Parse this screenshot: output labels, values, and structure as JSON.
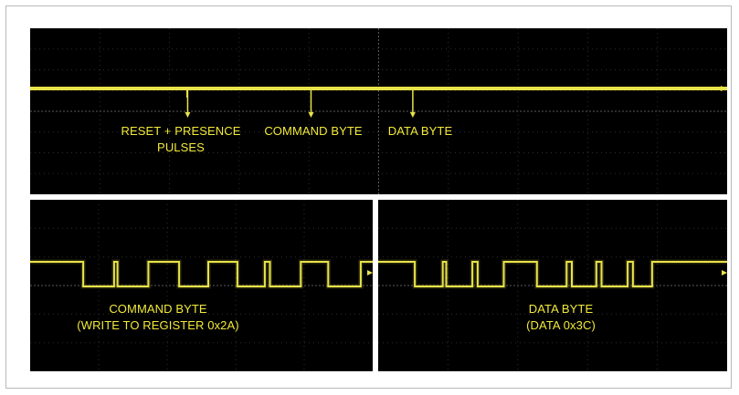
{
  "chart_data": [
    {
      "type": "line",
      "panel": "overview",
      "trace_color": "#e8e34a",
      "annotations": [
        {
          "id": "reset",
          "lines": [
            "RESET + PRESENCE",
            "PULSES"
          ],
          "marker_x": 0.226
        },
        {
          "id": "command",
          "lines": [
            "COMMAND BYTE"
          ],
          "marker_x": 0.403
        },
        {
          "id": "data",
          "lines": [
            "DATA BYTE"
          ],
          "marker_x": 0.549
        }
      ]
    },
    {
      "type": "line",
      "panel": "command-byte-zoom",
      "trace_color": "#e8e34a",
      "signal": [
        [
          0.0,
          1
        ],
        [
          0.155,
          1
        ],
        [
          0.155,
          0
        ],
        [
          0.245,
          0
        ],
        [
          0.245,
          1
        ],
        [
          0.255,
          1
        ],
        [
          0.255,
          0
        ],
        [
          0.345,
          0
        ],
        [
          0.345,
          1
        ],
        [
          0.435,
          1
        ],
        [
          0.435,
          0
        ],
        [
          0.52,
          0
        ],
        [
          0.52,
          1
        ],
        [
          0.605,
          1
        ],
        [
          0.605,
          0
        ],
        [
          0.685,
          0
        ],
        [
          0.685,
          1
        ],
        [
          0.7,
          1
        ],
        [
          0.7,
          0
        ],
        [
          0.79,
          0
        ],
        [
          0.79,
          1
        ],
        [
          0.87,
          1
        ],
        [
          0.87,
          0
        ],
        [
          0.965,
          0
        ],
        [
          0.965,
          1
        ],
        [
          1.0,
          1
        ]
      ],
      "annotation_lines": [
        "COMMAND BYTE",
        "(WRITE TO REGISTER 0x2A)"
      ]
    },
    {
      "type": "line",
      "panel": "data-byte-zoom",
      "trace_color": "#e8e34a",
      "signal": [
        [
          0.0,
          1
        ],
        [
          0.105,
          1
        ],
        [
          0.105,
          0
        ],
        [
          0.185,
          0
        ],
        [
          0.185,
          1
        ],
        [
          0.195,
          1
        ],
        [
          0.195,
          0
        ],
        [
          0.27,
          0
        ],
        [
          0.27,
          1
        ],
        [
          0.285,
          1
        ],
        [
          0.285,
          0
        ],
        [
          0.36,
          0
        ],
        [
          0.36,
          1
        ],
        [
          0.455,
          1
        ],
        [
          0.455,
          0
        ],
        [
          0.54,
          0
        ],
        [
          0.54,
          1
        ],
        [
          0.555,
          1
        ],
        [
          0.555,
          0
        ],
        [
          0.625,
          0
        ],
        [
          0.625,
          1
        ],
        [
          0.64,
          1
        ],
        [
          0.64,
          0
        ],
        [
          0.715,
          0
        ],
        [
          0.715,
          1
        ],
        [
          0.73,
          1
        ],
        [
          0.73,
          0
        ],
        [
          0.785,
          0
        ],
        [
          0.785,
          1
        ],
        [
          1.0,
          1
        ]
      ],
      "annotation_lines": [
        "DATA BYTE",
        "(DATA 0x3C)"
      ]
    }
  ]
}
